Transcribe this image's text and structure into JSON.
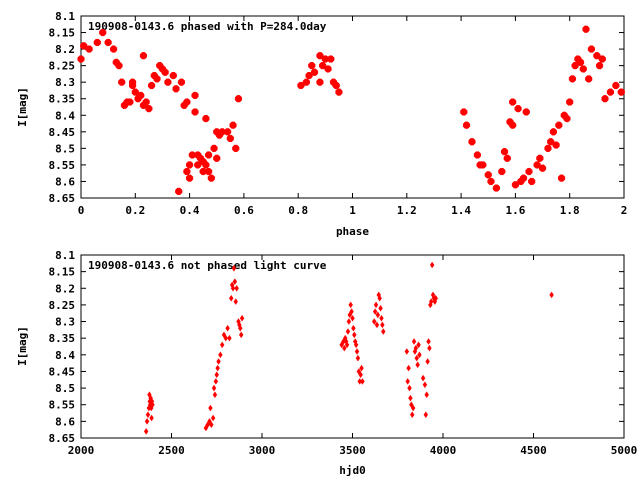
{
  "chart_data": [
    {
      "type": "scatter",
      "title": "190908-0143.6 phased with P=284.0day",
      "xlabel": "phase",
      "ylabel": "I[mag]",
      "xlim": [
        0,
        2
      ],
      "ylim": [
        8.65,
        8.1
      ],
      "y_inverted": true,
      "grid": false,
      "marker_color": "#ff0000",
      "x_ticks": [
        "0",
        "0.2",
        "0.4",
        "0.6",
        "0.8",
        "1",
        "1.2",
        "1.4",
        "1.6",
        "1.8",
        "2"
      ],
      "y_ticks": [
        "8.1",
        "8.15",
        "8.2",
        "8.25",
        "8.3",
        "8.35",
        "8.4",
        "8.45",
        "8.5",
        "8.55",
        "8.6",
        "8.65"
      ],
      "points": [
        [
          0.0,
          8.23
        ],
        [
          0.01,
          8.19
        ],
        [
          0.03,
          8.2
        ],
        [
          0.06,
          8.18
        ],
        [
          0.08,
          8.15
        ],
        [
          0.1,
          8.18
        ],
        [
          0.12,
          8.2
        ],
        [
          0.13,
          8.24
        ],
        [
          0.14,
          8.25
        ],
        [
          0.15,
          8.3
        ],
        [
          0.16,
          8.37
        ],
        [
          0.17,
          8.36
        ],
        [
          0.18,
          8.36
        ],
        [
          0.19,
          8.31
        ],
        [
          0.19,
          8.3
        ],
        [
          0.2,
          8.33
        ],
        [
          0.21,
          8.35
        ],
        [
          0.22,
          8.34
        ],
        [
          0.23,
          8.22
        ],
        [
          0.23,
          8.37
        ],
        [
          0.24,
          8.36
        ],
        [
          0.25,
          8.38
        ],
        [
          0.26,
          8.31
        ],
        [
          0.27,
          8.28
        ],
        [
          0.28,
          8.29
        ],
        [
          0.29,
          8.25
        ],
        [
          0.3,
          8.26
        ],
        [
          0.31,
          8.27
        ],
        [
          0.32,
          8.3
        ],
        [
          0.34,
          8.28
        ],
        [
          0.35,
          8.32
        ],
        [
          0.36,
          8.63
        ],
        [
          0.37,
          8.3
        ],
        [
          0.38,
          8.37
        ],
        [
          0.39,
          8.36
        ],
        [
          0.39,
          8.57
        ],
        [
          0.4,
          8.59
        ],
        [
          0.4,
          8.55
        ],
        [
          0.41,
          8.52
        ],
        [
          0.42,
          8.34
        ],
        [
          0.42,
          8.39
        ],
        [
          0.43,
          8.52
        ],
        [
          0.43,
          8.55
        ],
        [
          0.44,
          8.53
        ],
        [
          0.45,
          8.54
        ],
        [
          0.45,
          8.57
        ],
        [
          0.46,
          8.41
        ],
        [
          0.46,
          8.55
        ],
        [
          0.47,
          8.52
        ],
        [
          0.47,
          8.57
        ],
        [
          0.48,
          8.59
        ],
        [
          0.49,
          8.5
        ],
        [
          0.5,
          8.45
        ],
        [
          0.5,
          8.53
        ],
        [
          0.51,
          8.46
        ],
        [
          0.52,
          8.45
        ],
        [
          0.54,
          8.45
        ],
        [
          0.55,
          8.47
        ],
        [
          0.56,
          8.43
        ],
        [
          0.57,
          8.5
        ],
        [
          0.58,
          8.35
        ],
        [
          0.81,
          8.31
        ],
        [
          0.83,
          8.3
        ],
        [
          0.84,
          8.28
        ],
        [
          0.85,
          8.25
        ],
        [
          0.86,
          8.27
        ],
        [
          0.88,
          8.3
        ],
        [
          0.88,
          8.22
        ],
        [
          0.89,
          8.25
        ],
        [
          0.9,
          8.23
        ],
        [
          0.91,
          8.26
        ],
        [
          0.92,
          8.23
        ],
        [
          0.93,
          8.3
        ],
        [
          0.94,
          8.31
        ],
        [
          0.95,
          8.33
        ],
        [
          1.41,
          8.39
        ],
        [
          1.42,
          8.43
        ],
        [
          1.44,
          8.48
        ],
        [
          1.46,
          8.52
        ],
        [
          1.47,
          8.55
        ],
        [
          1.48,
          8.55
        ],
        [
          1.5,
          8.58
        ],
        [
          1.51,
          8.6
        ],
        [
          1.53,
          8.62
        ],
        [
          1.55,
          8.57
        ],
        [
          1.56,
          8.51
        ],
        [
          1.57,
          8.53
        ],
        [
          1.58,
          8.42
        ],
        [
          1.59,
          8.36
        ],
        [
          1.59,
          8.43
        ],
        [
          1.6,
          8.61
        ],
        [
          1.61,
          8.38
        ],
        [
          1.62,
          8.6
        ],
        [
          1.63,
          8.59
        ],
        [
          1.64,
          8.39
        ],
        [
          1.65,
          8.57
        ],
        [
          1.66,
          8.6
        ],
        [
          1.68,
          8.55
        ],
        [
          1.69,
          8.53
        ],
        [
          1.7,
          8.56
        ],
        [
          1.72,
          8.5
        ],
        [
          1.73,
          8.48
        ],
        [
          1.74,
          8.45
        ],
        [
          1.75,
          8.49
        ],
        [
          1.76,
          8.43
        ],
        [
          1.77,
          8.59
        ],
        [
          1.78,
          8.4
        ],
        [
          1.79,
          8.41
        ],
        [
          1.8,
          8.36
        ],
        [
          1.81,
          8.29
        ],
        [
          1.82,
          8.25
        ],
        [
          1.83,
          8.23
        ],
        [
          1.84,
          8.24
        ],
        [
          1.85,
          8.26
        ],
        [
          1.86,
          8.14
        ],
        [
          1.87,
          8.29
        ],
        [
          1.88,
          8.2
        ],
        [
          1.9,
          8.22
        ],
        [
          1.91,
          8.25
        ],
        [
          1.92,
          8.23
        ],
        [
          1.93,
          8.35
        ],
        [
          1.95,
          8.33
        ],
        [
          1.97,
          8.31
        ],
        [
          1.99,
          8.33
        ]
      ]
    },
    {
      "type": "scatter",
      "title": "190908-0143.6 not phased light curve",
      "xlabel": "hjd0",
      "ylabel": "I[mag]",
      "xlim": [
        2000,
        5000
      ],
      "ylim": [
        8.65,
        8.1
      ],
      "y_inverted": true,
      "grid": false,
      "marker_color": "#ff0000",
      "x_ticks": [
        "2000",
        "2500",
        "3000",
        "3500",
        "4000",
        "4500",
        "5000"
      ],
      "y_ticks": [
        "8.1",
        "8.15",
        "8.2",
        "8.25",
        "8.3",
        "8.35",
        "8.4",
        "8.45",
        "8.5",
        "8.55",
        "8.6",
        "8.65"
      ],
      "points": [
        [
          2360,
          8.63
        ],
        [
          2365,
          8.6
        ],
        [
          2370,
          8.58
        ],
        [
          2375,
          8.56
        ],
        [
          2378,
          8.52
        ],
        [
          2380,
          8.54
        ],
        [
          2382,
          8.55
        ],
        [
          2385,
          8.53
        ],
        [
          2388,
          8.56
        ],
        [
          2390,
          8.59
        ],
        [
          2392,
          8.54
        ],
        [
          2395,
          8.55
        ],
        [
          2690,
          8.62
        ],
        [
          2700,
          8.61
        ],
        [
          2710,
          8.6
        ],
        [
          2715,
          8.56
        ],
        [
          2720,
          8.61
        ],
        [
          2730,
          8.59
        ],
        [
          2735,
          8.5
        ],
        [
          2740,
          8.52
        ],
        [
          2745,
          8.48
        ],
        [
          2750,
          8.46
        ],
        [
          2755,
          8.44
        ],
        [
          2760,
          8.42
        ],
        [
          2770,
          8.4
        ],
        [
          2780,
          8.37
        ],
        [
          2790,
          8.34
        ],
        [
          2800,
          8.35
        ],
        [
          2810,
          8.32
        ],
        [
          2820,
          8.35
        ],
        [
          2830,
          8.23
        ],
        [
          2835,
          8.19
        ],
        [
          2840,
          8.2
        ],
        [
          2845,
          8.14
        ],
        [
          2850,
          8.18
        ],
        [
          2855,
          8.24
        ],
        [
          2860,
          8.2
        ],
        [
          2870,
          8.3
        ],
        [
          2875,
          8.31
        ],
        [
          2880,
          8.32
        ],
        [
          2885,
          8.34
        ],
        [
          2890,
          8.29
        ],
        [
          3440,
          8.37
        ],
        [
          3450,
          8.36
        ],
        [
          3455,
          8.38
        ],
        [
          3460,
          8.35
        ],
        [
          3465,
          8.36
        ],
        [
          3470,
          8.37
        ],
        [
          3475,
          8.33
        ],
        [
          3480,
          8.3
        ],
        [
          3485,
          8.28
        ],
        [
          3490,
          8.25
        ],
        [
          3495,
          8.27
        ],
        [
          3500,
          8.29
        ],
        [
          3505,
          8.32
        ],
        [
          3510,
          8.34
        ],
        [
          3515,
          8.36
        ],
        [
          3520,
          8.37
        ],
        [
          3525,
          8.39
        ],
        [
          3530,
          8.41
        ],
        [
          3535,
          8.45
        ],
        [
          3540,
          8.48
        ],
        [
          3545,
          8.46
        ],
        [
          3550,
          8.44
        ],
        [
          3555,
          8.48
        ],
        [
          3620,
          8.3
        ],
        [
          3625,
          8.27
        ],
        [
          3630,
          8.25
        ],
        [
          3635,
          8.31
        ],
        [
          3640,
          8.28
        ],
        [
          3645,
          8.22
        ],
        [
          3650,
          8.23
        ],
        [
          3655,
          8.26
        ],
        [
          3660,
          8.29
        ],
        [
          3665,
          8.31
        ],
        [
          3670,
          8.33
        ],
        [
          3800,
          8.39
        ],
        [
          3805,
          8.48
        ],
        [
          3810,
          8.44
        ],
        [
          3815,
          8.5
        ],
        [
          3820,
          8.53
        ],
        [
          3825,
          8.55
        ],
        [
          3830,
          8.58
        ],
        [
          3835,
          8.56
        ],
        [
          3840,
          8.36
        ],
        [
          3845,
          8.39
        ],
        [
          3850,
          8.38
        ],
        [
          3855,
          8.41
        ],
        [
          3860,
          8.43
        ],
        [
          3865,
          8.37
        ],
        [
          3870,
          8.4
        ],
        [
          3890,
          8.47
        ],
        [
          3900,
          8.49
        ],
        [
          3905,
          8.58
        ],
        [
          3910,
          8.52
        ],
        [
          3915,
          8.42
        ],
        [
          3920,
          8.36
        ],
        [
          3925,
          8.38
        ],
        [
          3930,
          8.25
        ],
        [
          3935,
          8.24
        ],
        [
          3940,
          8.13
        ],
        [
          3945,
          8.22
        ],
        [
          3950,
          8.23
        ],
        [
          3955,
          8.24
        ],
        [
          3960,
          8.23
        ],
        [
          4600,
          8.22
        ]
      ]
    }
  ]
}
